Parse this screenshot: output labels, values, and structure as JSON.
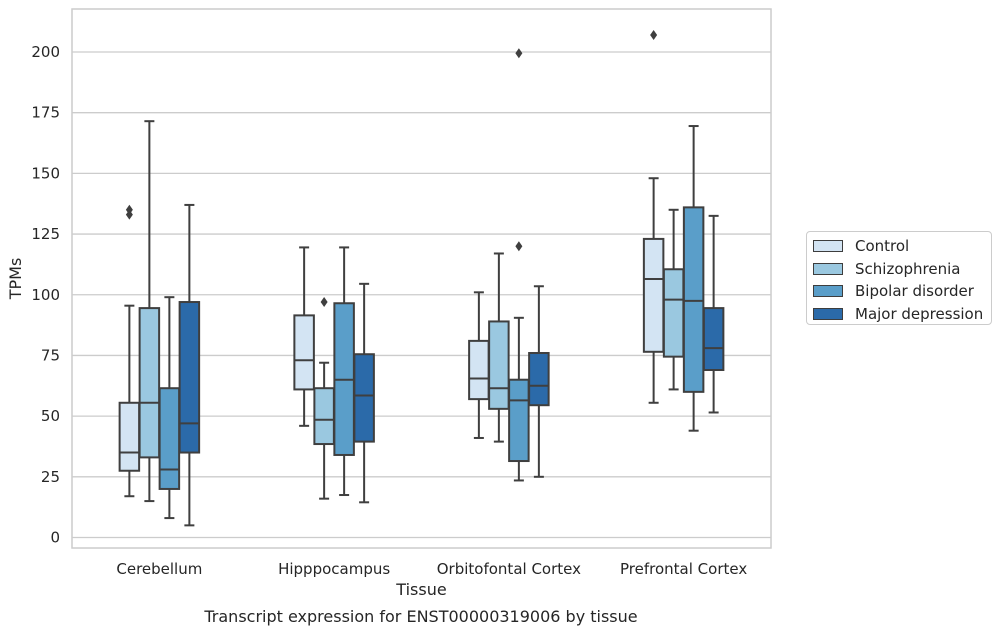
{
  "chart_data": {
    "type": "box",
    "title": "Transcript expression for ENST00000319006 by tissue",
    "xlabel": "Tissue",
    "ylabel": "TPMs",
    "ylim": [
      -5,
      218
    ],
    "yticks": [
      0,
      25,
      50,
      75,
      100,
      125,
      150,
      175,
      200
    ],
    "ytick_labels": [
      "0",
      "25",
      "50",
      "75",
      "100",
      "125",
      "150",
      "175",
      "200"
    ],
    "grid": "horizontal",
    "legend_position": "right",
    "categories": [
      "Cerebellum",
      "Hipppocampus",
      "Orbitofontal Cortex",
      "Prefrontal Cortex"
    ],
    "series": [
      {
        "name": "Control",
        "color": "#d3e4f3",
        "boxes": [
          {
            "whislo": 17,
            "q1": 27.5,
            "med": 35,
            "q3": 55.5,
            "whishi": 95.5,
            "fliers": [
              133,
              135
            ]
          },
          {
            "whislo": 46,
            "q1": 61,
            "med": 73,
            "q3": 91.5,
            "whishi": 119.5,
            "fliers": []
          },
          {
            "whislo": 41,
            "q1": 57,
            "med": 65.5,
            "q3": 81,
            "whishi": 101,
            "fliers": []
          },
          {
            "whislo": 55.5,
            "q1": 76.5,
            "med": 106.5,
            "q3": 123,
            "whishi": 148,
            "fliers": [
              207
            ]
          }
        ]
      },
      {
        "name": "Schizophrenia",
        "color": "#9ac8e0",
        "boxes": [
          {
            "whislo": 15,
            "q1": 33,
            "med": 55.5,
            "q3": 94.5,
            "whishi": 171.5,
            "fliers": []
          },
          {
            "whislo": 16,
            "q1": 38.5,
            "med": 48.5,
            "q3": 61.5,
            "whishi": 72,
            "fliers": [
              97
            ]
          },
          {
            "whislo": 39.5,
            "q1": 53,
            "med": 61.5,
            "q3": 89,
            "whishi": 117,
            "fliers": []
          },
          {
            "whislo": 61,
            "q1": 74.5,
            "med": 98,
            "q3": 110.5,
            "whishi": 135,
            "fliers": []
          }
        ]
      },
      {
        "name": "Bipolar disorder",
        "color": "#5a9ec9",
        "boxes": [
          {
            "whislo": 8,
            "q1": 20,
            "med": 28,
            "q3": 61.5,
            "whishi": 99,
            "fliers": []
          },
          {
            "whislo": 17.5,
            "q1": 34,
            "med": 65,
            "q3": 96.5,
            "whishi": 119.5,
            "fliers": []
          },
          {
            "whislo": 23.5,
            "q1": 31.5,
            "med": 56.5,
            "q3": 65,
            "whishi": 90.5,
            "fliers": [
              120,
              199.5
            ]
          },
          {
            "whislo": 44,
            "q1": 60,
            "med": 97.5,
            "q3": 136,
            "whishi": 169.5,
            "fliers": []
          }
        ]
      },
      {
        "name": "Major depression",
        "color": "#2b6aa9",
        "boxes": [
          {
            "whislo": 5,
            "q1": 35,
            "med": 47,
            "q3": 97,
            "whishi": 137,
            "fliers": []
          },
          {
            "whislo": 14.5,
            "q1": 39.5,
            "med": 58.5,
            "q3": 75.5,
            "whishi": 104.5,
            "fliers": []
          },
          {
            "whislo": 25,
            "q1": 54.5,
            "med": 62.5,
            "q3": 76,
            "whishi": 103.5,
            "fliers": []
          },
          {
            "whislo": 51.5,
            "q1": 69,
            "med": 78,
            "q3": 94.5,
            "whishi": 132.5,
            "fliers": []
          }
        ]
      }
    ]
  }
}
